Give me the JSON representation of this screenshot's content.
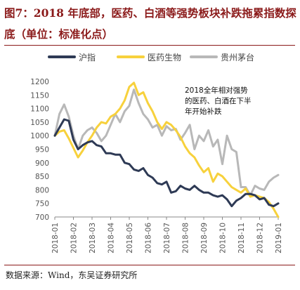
{
  "header": {
    "title": "图7：2018 年底部，医药、白酒等强势板块补跌拖累指数探底（单位：标准化点）"
  },
  "footer": {
    "source": "数据来源：Wind，东吴证券研究所"
  },
  "chart_data": {
    "type": "line",
    "title": "图7：2018 年底部，医药、白酒等强势板块补跌拖累指数探底（单位：标准化点）",
    "xlabel": "",
    "ylabel": "",
    "ylim": [
      700,
      1200
    ],
    "yticks": [
      700,
      750,
      800,
      850,
      900,
      950,
      1000,
      1050,
      1100,
      1150,
      1200
    ],
    "x_categories": [
      "2018-01",
      "2018-02",
      "2018-03",
      "2018-04",
      "2018-05",
      "2018-06",
      "2018-07",
      "2018-08",
      "2018-09",
      "2018-10",
      "2018-11",
      "2018-12",
      "2019-01"
    ],
    "x": [
      0,
      0.25,
      0.5,
      0.75,
      1,
      1.25,
      1.5,
      1.75,
      2,
      2.25,
      2.5,
      2.75,
      3,
      3.25,
      3.5,
      3.75,
      4,
      4.25,
      4.5,
      4.75,
      5,
      5.25,
      5.5,
      5.75,
      6,
      6.25,
      6.5,
      6.75,
      7,
      7.25,
      7.5,
      7.75,
      8,
      8.25,
      8.5,
      8.75,
      9,
      9.25,
      9.5,
      9.75,
      10,
      10.25,
      10.5,
      10.75,
      11,
      11.25,
      11.5,
      11.75,
      12
    ],
    "legend_position": "top",
    "grid": false,
    "series": [
      {
        "name": "沪指",
        "color": "#2e3a55",
        "values": [
          1000,
          1030,
          1060,
          1055,
          985,
          950,
          965,
          975,
          980,
          965,
          960,
          935,
          935,
          930,
          930,
          900,
          895,
          875,
          870,
          880,
          855,
          845,
          825,
          820,
          830,
          790,
          795,
          815,
          805,
          800,
          815,
          800,
          790,
          790,
          780,
          775,
          780,
          765,
          740,
          760,
          770,
          785,
          785,
          780,
          765,
          770,
          745,
          740,
          750
        ]
      },
      {
        "name": "医药生物",
        "color": "#f7d13c",
        "values": [
          1000,
          1015,
          1020,
          990,
          955,
          920,
          945,
          975,
          1000,
          1030,
          1050,
          1045,
          1070,
          1080,
          1100,
          1130,
          1180,
          1195,
          1150,
          1160,
          1120,
          1090,
          1050,
          1025,
          1050,
          1040,
          1020,
          995,
          960,
          935,
          920,
          890,
          865,
          880,
          830,
          860,
          850,
          830,
          810,
          800,
          790,
          805,
          775,
          780,
          775,
          770,
          755,
          730,
          700
        ]
      },
      {
        "name": "贵州茅台",
        "color": "#b8b8b8",
        "values": [
          1000,
          1080,
          1115,
          1070,
          1000,
          950,
          1000,
          1020,
          1030,
          1010,
          980,
          1000,
          1040,
          1080,
          1050,
          1090,
          1110,
          1170,
          1120,
          1080,
          1060,
          1030,
          1040,
          1000,
          1035,
          1020,
          1025,
          985,
          1010,
          1040,
          950,
          1000,
          980,
          1020,
          960,
          985,
          895,
          1000,
          950,
          940,
          810,
          810,
          780,
          815,
          805,
          800,
          830,
          845,
          855
        ]
      }
    ],
    "annotation": "2018全年相对强势的医药、白酒在下半年开始补跌"
  }
}
